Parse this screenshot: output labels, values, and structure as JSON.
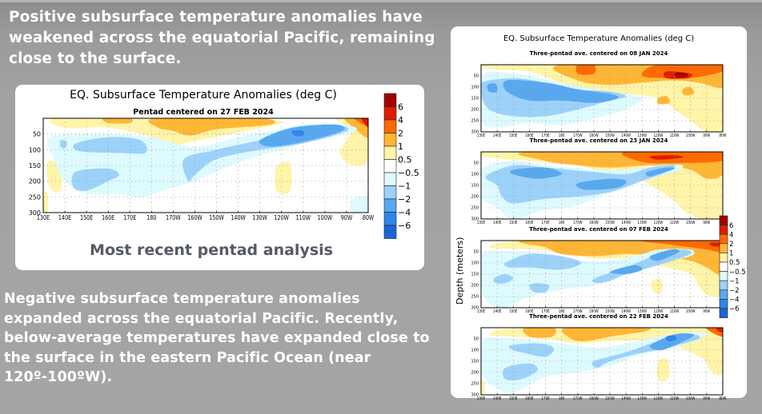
{
  "slide": {
    "paragraph_top": "Positive subsurface temperature anomalies have weakened across the equatorial Pacific, remaining close to the surface.",
    "paragraph_bottom": "Negative subsurface temperature anomalies expanded across the equatorial Pacific.  Recently, below-average temperatures have expanded close to the surface in the eastern Pacific Ocean (near 120º-100ºW).",
    "caption_left": "Most recent pentad analysis"
  },
  "colorbar": {
    "labels": [
      "6",
      "4",
      "2",
      "1",
      "0.5",
      "−0.5",
      "−1",
      "−2",
      "−4",
      "−6"
    ],
    "colors": [
      "#a30000",
      "#e01c00",
      "#ff6a00",
      "#ffb634",
      "#fff4a8",
      "#ffffff",
      "#ddfaff",
      "#9cd2fa",
      "#58a8f0",
      "#2f86e8",
      "#1a66d4"
    ]
  },
  "chart_data": [
    {
      "type": "heatmap",
      "title": "EQ. Subsurface Temperature Anomalies (deg C)",
      "subtitle": "Pentad centered on 27 FEB 2024",
      "xlabel": "",
      "ylabel": "",
      "x_ticks": [
        "130E",
        "140E",
        "150E",
        "160E",
        "170E",
        "180",
        "170W",
        "160W",
        "150W",
        "140W",
        "130W",
        "120W",
        "110W",
        "100W",
        "90W",
        "80W"
      ],
      "y_ticks": [
        "50",
        "100",
        "150",
        "200",
        "250",
        "300"
      ],
      "ylim": [
        0,
        300
      ],
      "grid": true,
      "features": [
        {
          "level": 1,
          "region": "0-40m, 175E-135W"
        },
        {
          "level": 1,
          "region": "0-20m, 153E-163E"
        },
        {
          "level": 4,
          "region": "0-30m, 85W-80W"
        },
        {
          "level": -2,
          "region": "20-90m, 128W-95W"
        },
        {
          "level": -4,
          "region": "40-60m, 120W-115W"
        },
        {
          "level": -1,
          "region": "60-190m, 165W-125W"
        },
        {
          "level": -1,
          "region": "60-110m, 148E-172E"
        },
        {
          "level": -1,
          "region": "160-230m, 148E-165E"
        },
        {
          "level": 0.5,
          "region": "140-230m, 125W-120W"
        }
      ]
    },
    {
      "type": "heatmap",
      "title": "EQ. Subsurface Temperature Anomalies (deg C)",
      "subtitle": "Three-pentad ave. centered on 08 JAN 2024",
      "x_ticks": [
        "130E",
        "140E",
        "150E",
        "160E",
        "170E",
        "180",
        "170W",
        "160W",
        "150W",
        "140W",
        "130W",
        "120W",
        "110W",
        "100W",
        "90W",
        "80W"
      ],
      "y_ticks": [
        "50",
        "100",
        "150",
        "200",
        "250",
        "300"
      ],
      "ylim": [
        0,
        300
      ],
      "features": [
        {
          "level": 4,
          "region": "20-70m, 125W-95W"
        },
        {
          "level": 6,
          "region": "40-60m, 108W-100W"
        },
        {
          "level": 2,
          "region": "0-60m, 170W-80W"
        },
        {
          "level": -2,
          "region": "80-200m, 150E-150W"
        }
      ]
    },
    {
      "type": "heatmap",
      "title": "",
      "subtitle": "Three-pentad ave. centered on 23 JAN 2024",
      "x_ticks": [
        "130E",
        "140E",
        "150E",
        "160E",
        "170E",
        "180",
        "170W",
        "160W",
        "150W",
        "140W",
        "130W",
        "120W",
        "110W",
        "100W",
        "90W",
        "80W"
      ],
      "y_ticks": [
        "50",
        "100",
        "150",
        "200",
        "250",
        "300"
      ],
      "ylim": [
        0,
        300
      ],
      "features": [
        {
          "level": 4,
          "region": "20-50m, 120W-95W"
        },
        {
          "level": 2,
          "region": "0-80m, 175E-80W"
        },
        {
          "level": -2,
          "region": "70-180m, 150E-140W"
        }
      ]
    },
    {
      "type": "heatmap",
      "title": "",
      "subtitle": "Three-pentad ave. centered on 07 FEB 2024",
      "ylabel": "Depth (meters)",
      "x_ticks": [
        "130E",
        "140E",
        "150E",
        "160E",
        "170E",
        "180",
        "170W",
        "160W",
        "150W",
        "140W",
        "130W",
        "120W",
        "110W",
        "100W",
        "90W",
        "80W"
      ],
      "y_ticks": [
        "50",
        "100",
        "150",
        "200",
        "250",
        "300"
      ],
      "ylim": [
        0,
        300
      ],
      "features": [
        {
          "level": 2,
          "region": "0-40m, 165E-80W"
        },
        {
          "level": -2,
          "region": "40-120m, 130W-110W"
        },
        {
          "level": -2,
          "region": "100-180m, 165W-140W"
        }
      ]
    },
    {
      "type": "heatmap",
      "title": "",
      "subtitle": "Three-pentad ave. centered on 22 FEB 2024",
      "x_ticks": [
        "130E",
        "140E",
        "150E",
        "160E",
        "170E",
        "180",
        "170W",
        "160W",
        "150W",
        "140W",
        "130W",
        "120W",
        "110W",
        "100W",
        "90W",
        "80W"
      ],
      "y_ticks": [
        "50",
        "100",
        "150",
        "200",
        "250",
        "300"
      ],
      "ylim": [
        0,
        300
      ],
      "features": [
        {
          "level": 2,
          "region": "0-40m, 175E-135W"
        },
        {
          "level": 4,
          "region": "0-20m, 88W-80W"
        },
        {
          "level": -4,
          "region": "20-80m, 125W-110W"
        },
        {
          "level": -1,
          "region": "60-180m, 165W-125W"
        }
      ]
    }
  ]
}
